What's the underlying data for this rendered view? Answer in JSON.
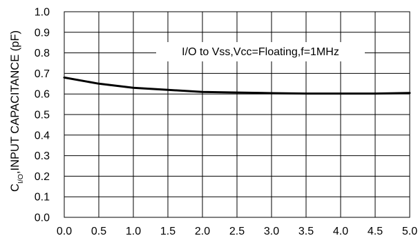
{
  "chart_data": {
    "type": "line",
    "title": "",
    "xlabel": "",
    "ylabel": {
      "prefix": "C",
      "subscript": "I/O",
      "suffix": ",INPUT CAPACITANCE (pF)"
    },
    "annotation": "I/O to Vss,Vcc=Floating,f=1MHz",
    "xlim": [
      0.0,
      5.0
    ],
    "ylim": [
      0.0,
      1.0
    ],
    "xticks": [
      "0.0",
      "0.5",
      "1.0",
      "1.5",
      "2.0",
      "2.5",
      "3.0",
      "3.5",
      "4.0",
      "4.5",
      "5.0"
    ],
    "yticks": [
      "0.0",
      "0.1",
      "0.2",
      "0.3",
      "0.4",
      "0.5",
      "0.6",
      "0.7",
      "0.8",
      "0.9",
      "1.0"
    ],
    "grid": true,
    "series": [
      {
        "x": [
          0.0,
          0.5,
          1.0,
          1.5,
          2.0,
          2.5,
          3.0,
          3.5,
          4.0,
          4.5,
          5.0
        ],
        "y": [
          0.68,
          0.65,
          0.63,
          0.62,
          0.61,
          0.607,
          0.604,
          0.602,
          0.602,
          0.602,
          0.605
        ]
      }
    ]
  },
  "colors": {
    "line": "#000000",
    "grid": "#000000",
    "background": "#ffffff"
  }
}
